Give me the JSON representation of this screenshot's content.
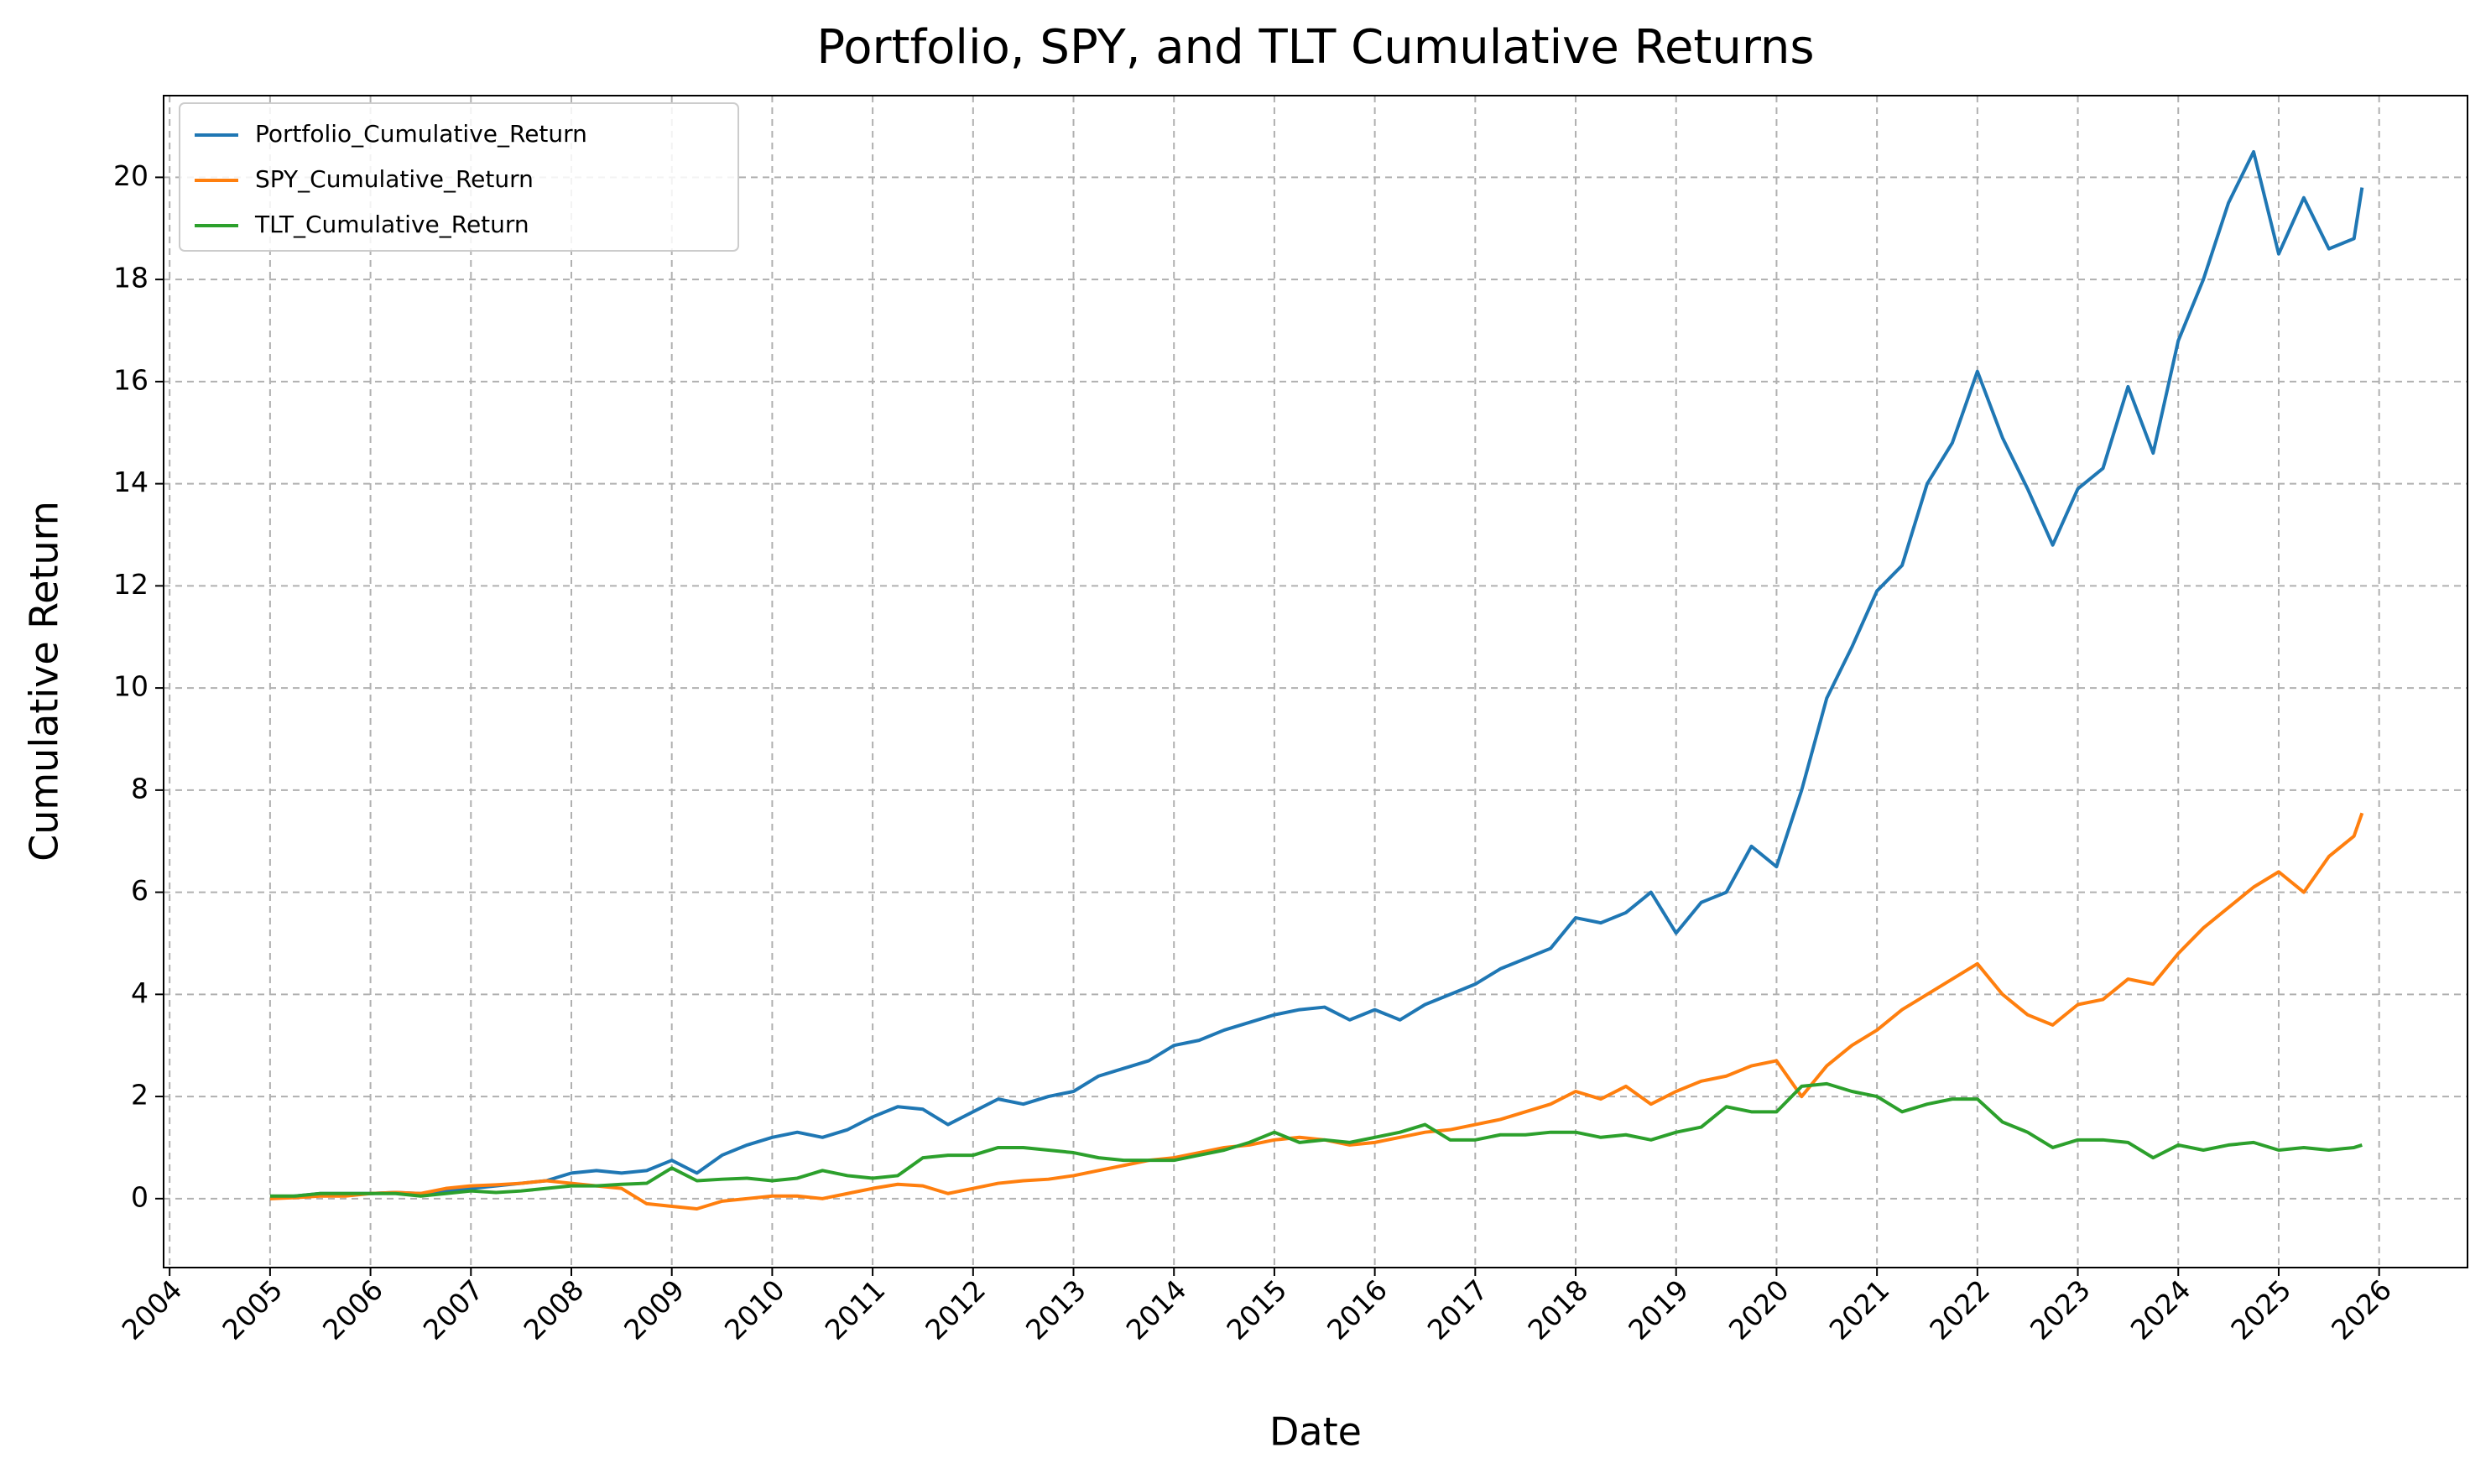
{
  "chart_data": {
    "type": "line",
    "title": "Portfolio, SPY, and TLT Cumulative Returns",
    "x_label": "Date",
    "y_label": "Cumulative Return",
    "x": [
      2005,
      2005.25,
      2005.5,
      2005.75,
      2006,
      2006.25,
      2006.5,
      2006.75,
      2007,
      2007.25,
      2007.5,
      2007.75,
      2008,
      2008.25,
      2008.5,
      2008.75,
      2009,
      2009.25,
      2009.5,
      2009.75,
      2010,
      2010.25,
      2010.5,
      2010.75,
      2011,
      2011.25,
      2011.5,
      2011.75,
      2012,
      2012.25,
      2012.5,
      2012.75,
      2013,
      2013.25,
      2013.5,
      2013.75,
      2014,
      2014.25,
      2014.5,
      2014.75,
      2015,
      2015.25,
      2015.5,
      2015.75,
      2016,
      2016.25,
      2016.5,
      2016.75,
      2017,
      2017.25,
      2017.5,
      2017.75,
      2018,
      2018.25,
      2018.5,
      2018.75,
      2019,
      2019.25,
      2019.5,
      2019.75,
      2020,
      2020.25,
      2020.5,
      2020.75,
      2021,
      2021.25,
      2021.5,
      2021.75,
      2022,
      2022.25,
      2022.5,
      2022.75,
      2023,
      2023.25,
      2023.5,
      2023.75,
      2024,
      2024.25,
      2024.5,
      2024.75,
      2025,
      2025.25,
      2025.5,
      2025.75,
      2025.83
    ],
    "series": [
      {
        "name": "Portfolio_Cumulative_Return",
        "color": "#1f77b4",
        "values": [
          0,
          0.05,
          0.1,
          0.1,
          0.1,
          0.12,
          0.1,
          0.15,
          0.2,
          0.25,
          0.3,
          0.35,
          0.5,
          0.55,
          0.5,
          0.55,
          0.75,
          0.5,
          0.85,
          1.05,
          1.2,
          1.3,
          1.2,
          1.35,
          1.6,
          1.8,
          1.75,
          1.45,
          1.7,
          1.95,
          1.85,
          2.0,
          2.1,
          2.4,
          2.55,
          2.7,
          3.0,
          3.1,
          3.3,
          3.45,
          3.6,
          3.7,
          3.75,
          3.5,
          3.7,
          3.5,
          3.8,
          4.0,
          4.2,
          4.5,
          4.7,
          4.9,
          5.5,
          5.4,
          5.6,
          6.0,
          5.2,
          5.8,
          6.0,
          6.9,
          6.5,
          8.0,
          9.8,
          10.8,
          11.9,
          12.4,
          14.0,
          14.8,
          16.2,
          14.9,
          13.9,
          12.8,
          13.9,
          14.3,
          15.9,
          14.6,
          16.8,
          18.0,
          19.5,
          20.5,
          18.5,
          19.6,
          18.6,
          18.8,
          19.8
        ]
      },
      {
        "name": "SPY_Cumulative_Return",
        "color": "#ff7f0e",
        "values": [
          0,
          0.02,
          0.05,
          0.05,
          0.1,
          0.12,
          0.1,
          0.2,
          0.25,
          0.27,
          0.3,
          0.35,
          0.3,
          0.25,
          0.2,
          -0.1,
          -0.15,
          -0.2,
          -0.05,
          0.0,
          0.05,
          0.05,
          0.0,
          0.1,
          0.2,
          0.28,
          0.25,
          0.1,
          0.2,
          0.3,
          0.35,
          0.38,
          0.45,
          0.55,
          0.65,
          0.75,
          0.8,
          0.9,
          1.0,
          1.05,
          1.15,
          1.2,
          1.15,
          1.05,
          1.1,
          1.2,
          1.3,
          1.35,
          1.45,
          1.55,
          1.7,
          1.85,
          2.1,
          1.95,
          2.2,
          1.85,
          2.1,
          2.3,
          2.4,
          2.6,
          2.7,
          2.0,
          2.6,
          3.0,
          3.3,
          3.7,
          4.0,
          4.3,
          4.6,
          4.0,
          3.6,
          3.4,
          3.8,
          3.9,
          4.3,
          4.2,
          4.8,
          5.3,
          5.7,
          6.1,
          6.4,
          6.0,
          6.7,
          7.1,
          7.55
        ]
      },
      {
        "name": "TLT_Cumulative_Return",
        "color": "#2ca02c",
        "values": [
          0.05,
          0.05,
          0.1,
          0.1,
          0.1,
          0.1,
          0.05,
          0.1,
          0.15,
          0.12,
          0.15,
          0.2,
          0.25,
          0.25,
          0.28,
          0.3,
          0.6,
          0.35,
          0.38,
          0.4,
          0.35,
          0.4,
          0.55,
          0.45,
          0.4,
          0.45,
          0.8,
          0.85,
          0.85,
          1.0,
          1.0,
          0.95,
          0.9,
          0.8,
          0.75,
          0.75,
          0.75,
          0.85,
          0.95,
          1.1,
          1.3,
          1.1,
          1.15,
          1.1,
          1.2,
          1.3,
          1.45,
          1.15,
          1.15,
          1.25,
          1.25,
          1.3,
          1.3,
          1.2,
          1.25,
          1.15,
          1.3,
          1.4,
          1.8,
          1.7,
          1.7,
          2.2,
          2.25,
          2.1,
          2.0,
          1.7,
          1.85,
          1.95,
          1.95,
          1.5,
          1.3,
          1.0,
          1.15,
          1.15,
          1.1,
          0.8,
          1.05,
          0.95,
          1.05,
          1.1,
          0.95,
          1.0,
          0.95,
          1.0,
          1.05
        ]
      }
    ],
    "xlim": [
      2003.94,
      2026.88
    ],
    "xticks": [
      2004,
      2005,
      2006,
      2007,
      2008,
      2009,
      2010,
      2011,
      2012,
      2013,
      2014,
      2015,
      2016,
      2017,
      2018,
      2019,
      2020,
      2021,
      2022,
      2023,
      2024,
      2025,
      2026
    ],
    "ylim": [
      -1.35,
      21.6
    ],
    "yticks": [
      0,
      2,
      4,
      6,
      8,
      10,
      12,
      14,
      16,
      18,
      20
    ],
    "grid": true,
    "legend": "upper left"
  }
}
